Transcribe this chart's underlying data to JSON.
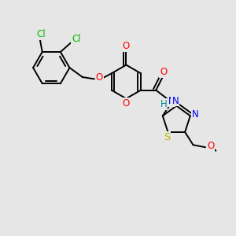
{
  "bg_color": "#e6e6e6",
  "bond_color": "#000000",
  "bond_lw": 1.4,
  "atom_colors": {
    "O": "#ff0000",
    "N": "#0000ee",
    "S": "#bbbb00",
    "Cl": "#00bb00",
    "H": "#008888",
    "C": "#000000"
  },
  "font_size": 8.5,
  "figsize": [
    3.0,
    3.0
  ],
  "dpi": 100
}
